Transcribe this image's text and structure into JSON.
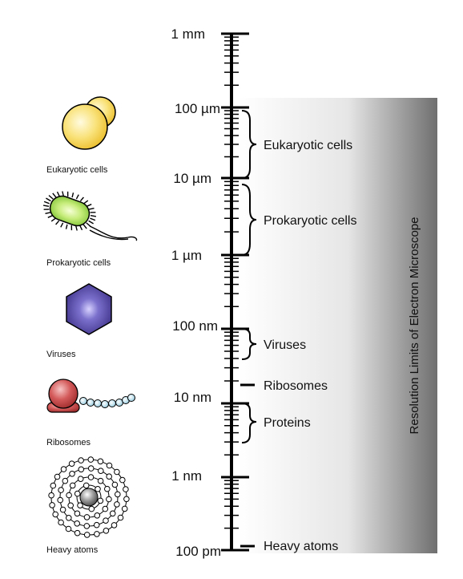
{
  "scale": {
    "labels": [
      "1 mm",
      "100 µm",
      "10 µm",
      "1 µm",
      "100 nm",
      "10 nm",
      "1 nm",
      "100 pm"
    ]
  },
  "ranges": [
    {
      "label": "Eukaryotic cells"
    },
    {
      "label": "Prokaryotic cells"
    },
    {
      "label": "Viruses"
    },
    {
      "label": "Ribosomes"
    },
    {
      "label": "Proteins"
    },
    {
      "label": "Heavy atoms"
    }
  ],
  "organisms": [
    {
      "label": "Eukaryotic cells"
    },
    {
      "label": "Prokaryotic cells"
    },
    {
      "label": "Viruses"
    },
    {
      "label": "Ribosomes"
    },
    {
      "label": "Heavy atoms"
    }
  ],
  "resolution": {
    "label": "Resolution Limits of Electron Microscope"
  },
  "colors": {
    "eukaryote": "#f5d54a",
    "bacterium": "#9ed94a",
    "virus": "#4b3f99",
    "ribosome": "#c84444",
    "chain": "#9fd3e6",
    "atom": "#777777"
  }
}
